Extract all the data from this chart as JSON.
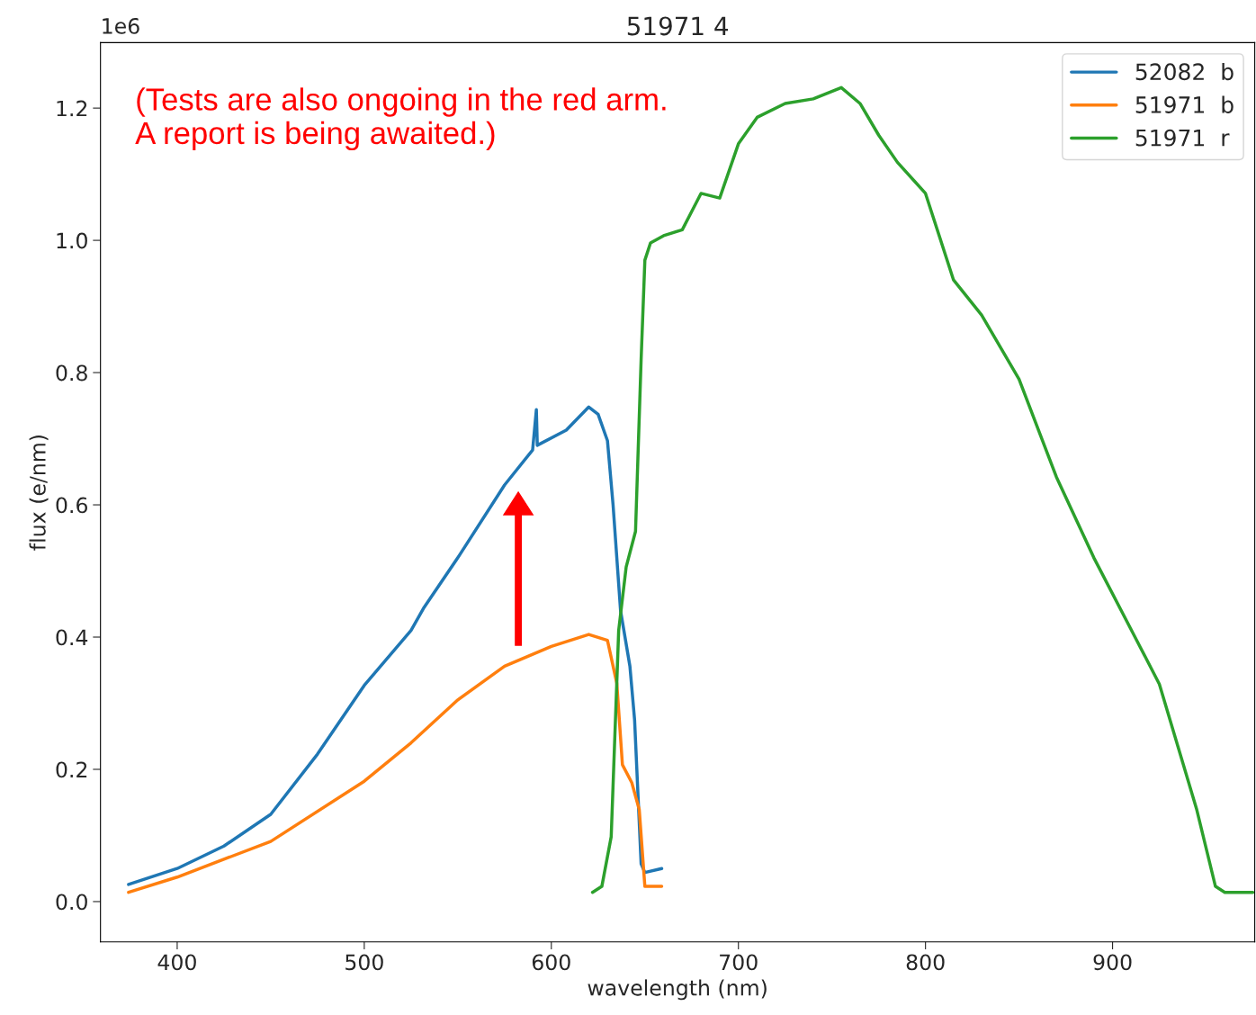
{
  "chart_data": {
    "type": "line",
    "title": "51971 4",
    "xlabel": "wavelength (nm)",
    "ylabel": "flux (e/nm)",
    "annotations": [
      "1e6",
      "(Tests are also ongoing in the red arm.\nA report is being awaited.)"
    ],
    "xlim": [
      359,
      976
    ],
    "xticks": [
      400,
      500,
      600,
      700,
      800,
      900
    ],
    "ylim": [
      -0.061,
      1.299
    ],
    "yticks": [
      {
        "value": 0,
        "label": "0.0"
      },
      0.2,
      0.4,
      0.6,
      0.8,
      {
        "value": 1,
        "label": "1.0"
      },
      1.2
    ],
    "grid": false,
    "legend": "top right",
    "marker": "none",
    "line_style": "solid",
    "series": [
      {
        "name": "52082  b",
        "color": "#1f77b4",
        "x": [
          374,
          400,
          425,
          450,
          475,
          500,
          525,
          532,
          550,
          575,
          590,
          592,
          592.5,
          608,
          620,
          625,
          630,
          633,
          637,
          642,
          644.5,
          648,
          650,
          659
        ],
        "values": [
          0.026,
          0.05,
          0.084,
          0.132,
          0.223,
          0.327,
          0.41,
          0.445,
          0.52,
          0.63,
          0.683,
          0.744,
          0.69,
          0.713,
          0.748,
          0.737,
          0.697,
          0.6,
          0.44,
          0.356,
          0.275,
          0.057,
          0.044,
          0.05
        ]
      },
      {
        "name": "51971  b",
        "color": "#ff7f0e",
        "x": [
          374,
          400,
          450,
          500,
          525,
          550,
          575,
          600,
          620,
          630,
          635,
          638,
          643,
          647,
          650,
          659
        ],
        "values": [
          0.014,
          0.037,
          0.091,
          0.182,
          0.24,
          0.305,
          0.356,
          0.386,
          0.404,
          0.395,
          0.33,
          0.207,
          0.18,
          0.139,
          0.023,
          0.023
        ]
      },
      {
        "name": "51971  r",
        "color": "#2ca02c",
        "x": [
          622,
          627,
          632,
          636,
          640,
          645,
          648,
          650,
          653,
          660,
          670,
          680,
          690,
          700,
          710,
          725,
          740,
          755,
          765,
          775,
          785,
          800,
          815,
          830,
          850,
          870,
          890,
          910,
          925,
          935,
          945,
          955,
          960,
          975
        ],
        "values": [
          0.014,
          0.023,
          0.098,
          0.41,
          0.506,
          0.56,
          0.82,
          0.97,
          0.996,
          1.007,
          1.016,
          1.071,
          1.064,
          1.146,
          1.186,
          1.207,
          1.214,
          1.231,
          1.207,
          1.159,
          1.118,
          1.071,
          0.94,
          0.887,
          0.79,
          0.642,
          0.52,
          0.411,
          0.329,
          0.234,
          0.139,
          0.023,
          0.014,
          0.014
        ]
      }
    ]
  }
}
